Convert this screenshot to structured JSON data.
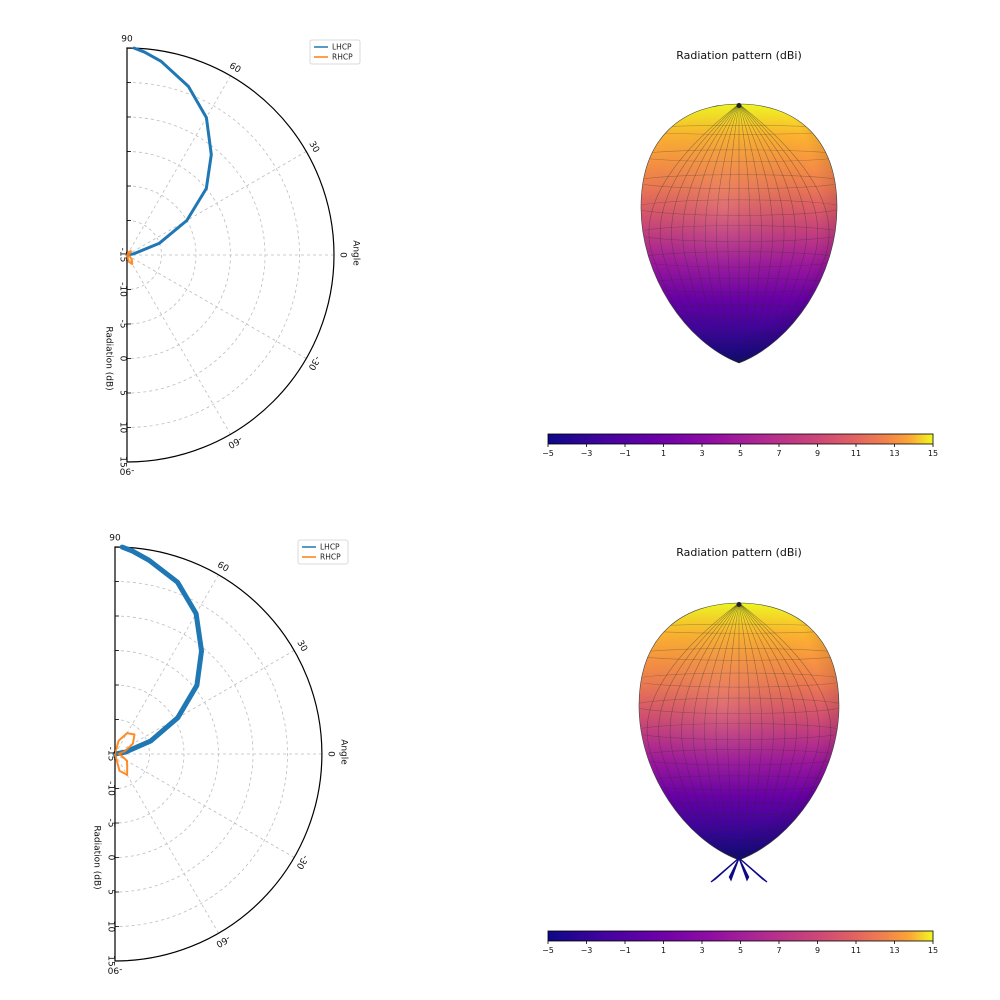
{
  "colors": {
    "lhcp": "#1f77b4",
    "rhcp": "#ff7f0e",
    "grid": "#bdbdbd",
    "colormap": "plasma"
  },
  "chart_data": [
    {
      "type": "line",
      "projection": "polar-half",
      "angle_label": "Angle",
      "radial_label": "Radiation (dB)",
      "angle_ticks": [
        "90",
        "60",
        "30",
        "0",
        "-30",
        "-60",
        "-90"
      ],
      "radial_ticks": [
        "-15",
        "-10",
        "-5",
        "0",
        "5",
        "10",
        "15"
      ],
      "radial_range": [
        -15,
        15
      ],
      "angle_range_deg": [
        -90,
        90
      ],
      "grid": true,
      "legend_position": "top-right",
      "series": [
        {
          "name": "LHCP",
          "color": "#1f77b4",
          "angle_deg": [
            -90,
            -80,
            -70,
            -60,
            -50,
            -40,
            -30,
            -20,
            -10,
            0,
            10,
            20,
            30,
            40,
            50,
            60,
            70,
            80,
            85,
            88
          ],
          "r_db": [
            -15,
            -15,
            -15,
            -15,
            -15,
            -15,
            -15,
            -15,
            -15,
            -15,
            -14,
            -10,
            -5,
            0,
            4,
            8,
            11,
            13.5,
            14.5,
            15
          ]
        },
        {
          "name": "RHCP",
          "color": "#ff7f0e",
          "angle_deg": [
            -90,
            -75,
            -60,
            -45,
            -30,
            -15,
            0,
            15,
            30,
            45,
            60,
            75,
            90
          ],
          "r_db": [
            -15,
            -14,
            -13.5,
            -14,
            -14.5,
            -14.8,
            -15,
            -14.8,
            -14.5,
            -14.2,
            -14.5,
            -14.8,
            -15
          ]
        }
      ]
    },
    {
      "type": "surface",
      "title": "Radiation pattern (dBi)",
      "colorbar_ticks": [
        "−5",
        "−3",
        "−1",
        "1",
        "3",
        "5",
        "7",
        "9",
        "11",
        "13",
        "15"
      ],
      "colorbar_range": [
        -5,
        15
      ],
      "shape": "single-lobe"
    },
    {
      "type": "line",
      "projection": "polar-half",
      "angle_label": "Angle",
      "radial_label": "Radiation (dB)",
      "angle_ticks": [
        "90",
        "60",
        "30",
        "0",
        "-30",
        "-60",
        "-90"
      ],
      "radial_ticks": [
        "-15",
        "-10",
        "-5",
        "0",
        "5",
        "10",
        "15"
      ],
      "radial_range": [
        -15,
        15
      ],
      "angle_range_deg": [
        -90,
        90
      ],
      "grid": true,
      "legend_position": "top-right",
      "series": [
        {
          "name": "LHCP",
          "color": "#1f77b4",
          "angle_deg": [
            -90,
            -80,
            -70,
            -60,
            -50,
            -40,
            -30,
            -20,
            -10,
            0,
            10,
            20,
            30,
            40,
            50,
            60,
            70,
            80,
            85,
            88
          ],
          "r_db": [
            -15,
            -15,
            -15,
            -15,
            -15,
            -15,
            -15,
            -15,
            -15,
            -15,
            -13.5,
            -9.5,
            -4.5,
            0.5,
            4.5,
            8.5,
            11.5,
            13.5,
            14.5,
            15
          ]
        },
        {
          "name": "RHCP",
          "color": "#ff7f0e",
          "angle_deg": [
            -90,
            -75,
            -60,
            -45,
            -30,
            -15,
            0,
            15,
            30,
            45,
            60,
            75,
            90
          ],
          "r_db": [
            -15,
            -12.5,
            -11.5,
            -12.5,
            -13,
            -14,
            -14.5,
            -13.5,
            -12,
            -11,
            -11.5,
            -13,
            -15
          ]
        }
      ]
    },
    {
      "type": "surface",
      "title": "Radiation pattern (dBi)",
      "colorbar_ticks": [
        "−5",
        "−3",
        "−1",
        "1",
        "3",
        "5",
        "7",
        "9",
        "11",
        "13",
        "15"
      ],
      "colorbar_range": [
        -5,
        15
      ],
      "shape": "single-lobe with back lobes"
    }
  ]
}
